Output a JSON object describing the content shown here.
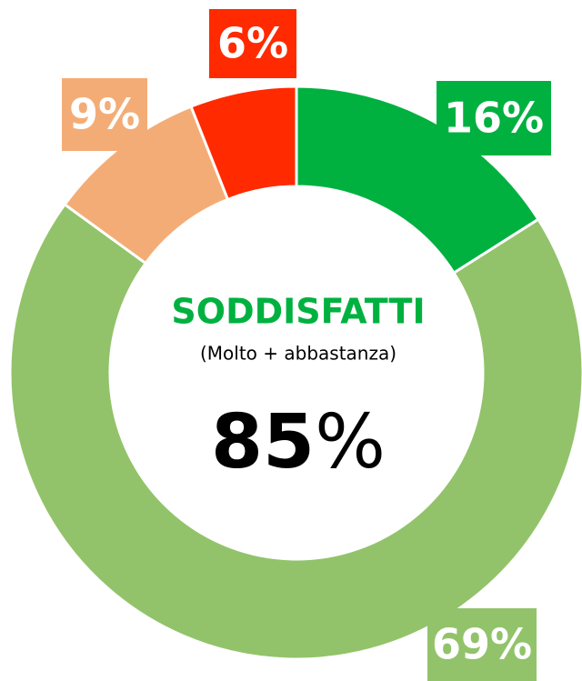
{
  "chart_data": {
    "type": "donut",
    "values": [
      16,
      69,
      9,
      6
    ],
    "value_labels": [
      "16%",
      "69%",
      "9%",
      "6%"
    ],
    "colors": [
      "#00b140",
      "#92c36a",
      "#f4ac76",
      "#ff2a00"
    ],
    "center_title": "SODDISFATTI",
    "center_subtitle": "(Molto + abbastanza)",
    "center_number": "85",
    "center_unit": "%"
  }
}
